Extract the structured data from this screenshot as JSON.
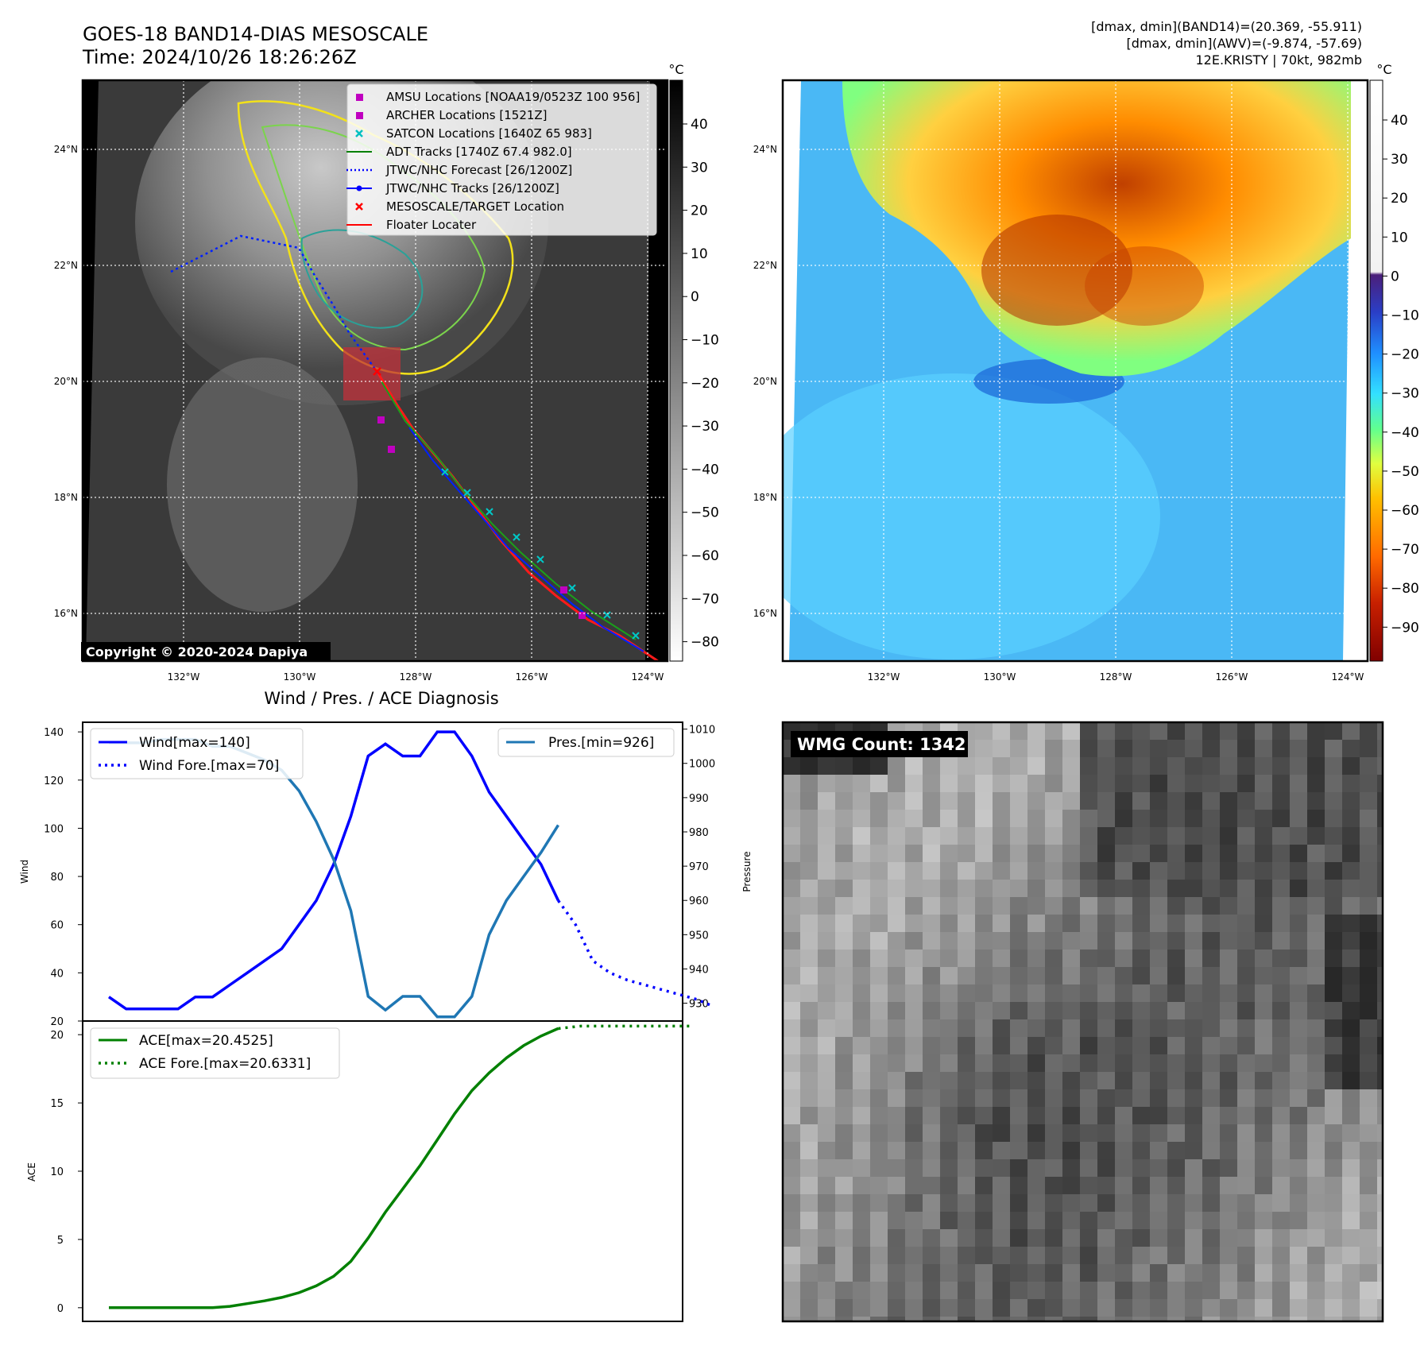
{
  "header": {
    "title": "GOES-18 BAND14-DIAS MESOSCALE",
    "time": "Time: 2024/10/26 18:26:26Z",
    "info_band14": "[dmax, dmin](BAND14)=(20.369, -55.911)",
    "info_awv": "[dmax, dmin](AWV)=(-9.874, -57.69)",
    "storm": "12E.KRISTY | 70kt, 982mb"
  },
  "map_ticks": {
    "lat": [
      "24°N",
      "22°N",
      "20°N",
      "18°N",
      "16°N"
    ],
    "lon": [
      "132°W",
      "130°W",
      "128°W",
      "126°W",
      "124°W"
    ]
  },
  "colorbar_left": {
    "unit": "°C",
    "ticks": [
      "40",
      "30",
      "20",
      "10",
      "0",
      "−10",
      "−20",
      "−30",
      "−40",
      "−50",
      "−60",
      "−70",
      "−80"
    ]
  },
  "colorbar_right": {
    "unit": "°C",
    "ticks": [
      "40",
      "30",
      "20",
      "10",
      "0",
      "−10",
      "−20",
      "−30",
      "−40",
      "−50",
      "−60",
      "−70",
      "−80",
      "−90"
    ]
  },
  "legend": [
    {
      "label": "AMSU Locations [NOAA19/0523Z 100 956]",
      "color": "#c000c0",
      "marker": "square"
    },
    {
      "label": "ARCHER Locations [1521Z]",
      "color": "#c000c0",
      "marker": "square"
    },
    {
      "label": "SATCON Locations [1640Z 65 983]",
      "color": "#00c0c0",
      "marker": "x"
    },
    {
      "label": "ADT Tracks [1740Z 67.4 982.0]",
      "color": "#008000",
      "marker": "line"
    },
    {
      "label": "JTWC/NHC Forecast [26/1200Z]",
      "color": "#0000ff",
      "marker": "dotted"
    },
    {
      "label": "JTWC/NHC Tracks [26/1200Z]",
      "color": "#0000ff",
      "marker": "line-dot"
    },
    {
      "label": "MESOSCALE/TARGET Location",
      "color": "#ff0000",
      "marker": "x"
    },
    {
      "label": "Floater Locater",
      "color": "#ff0000",
      "marker": "line"
    }
  ],
  "copyright": "Copyright © 2020-2024 Dapiya",
  "wmg": {
    "label": "WMG Count: 1342"
  },
  "chart_data": [
    {
      "type": "line",
      "title": "Wind / Pres. / ACE Diagnosis",
      "ylabel": "Wind",
      "y2label": "Pressure",
      "ylim": [
        20,
        144
      ],
      "y2lim": [
        924.8,
        1012
      ],
      "yticks": [
        20,
        40,
        60,
        80,
        100,
        120,
        140
      ],
      "y2ticks": [
        930,
        940,
        950,
        960,
        970,
        980,
        990,
        1000,
        1010
      ],
      "series": [
        {
          "name": "Wind[max=140]",
          "axis": "left",
          "color": "#0000ff",
          "style": "solid",
          "values": [
            30,
            25,
            25,
            25,
            25,
            30,
            30,
            35,
            40,
            45,
            50,
            60,
            70,
            85,
            105,
            130,
            135,
            130,
            130,
            140,
            140,
            130,
            115,
            105,
            95,
            85,
            70
          ]
        },
        {
          "name": "Wind Fore.[max=70]",
          "axis": "left",
          "color": "#0000ff",
          "style": "dotted",
          "values": [
            70,
            60,
            45,
            40,
            37,
            35,
            33,
            31,
            29,
            26
          ]
        },
        {
          "name": "Pres.[min=926]",
          "axis": "right",
          "color": "#1f77b4",
          "style": "solid",
          "values": [
            1006,
            1006,
            1006,
            1007,
            1007,
            1007,
            1005,
            1005,
            1003,
            1001,
            998,
            992,
            983,
            972,
            957,
            932,
            928,
            932,
            932,
            926,
            926,
            932,
            950,
            960,
            967,
            974,
            982
          ]
        }
      ]
    },
    {
      "type": "line",
      "ylabel": "ACE",
      "ylim": [
        -1,
        21
      ],
      "yticks": [
        0,
        5,
        10,
        15,
        20
      ],
      "series": [
        {
          "name": "ACE[max=20.4525]",
          "color": "#008000",
          "style": "solid",
          "values": [
            0,
            0,
            0,
            0,
            0,
            0,
            0,
            0.1,
            0.3,
            0.5,
            0.75,
            1.1,
            1.6,
            2.3,
            3.4,
            5.1,
            7,
            8.7,
            10.4,
            12.3,
            14.2,
            15.9,
            17.2,
            18.3,
            19.2,
            19.9,
            20.4525
          ]
        },
        {
          "name": "ACE Fore.[max=20.6331]",
          "color": "#008000",
          "style": "dotted",
          "values": [
            20.45,
            20.63,
            20.63,
            20.63,
            20.63,
            20.63,
            20.63
          ]
        }
      ]
    }
  ]
}
